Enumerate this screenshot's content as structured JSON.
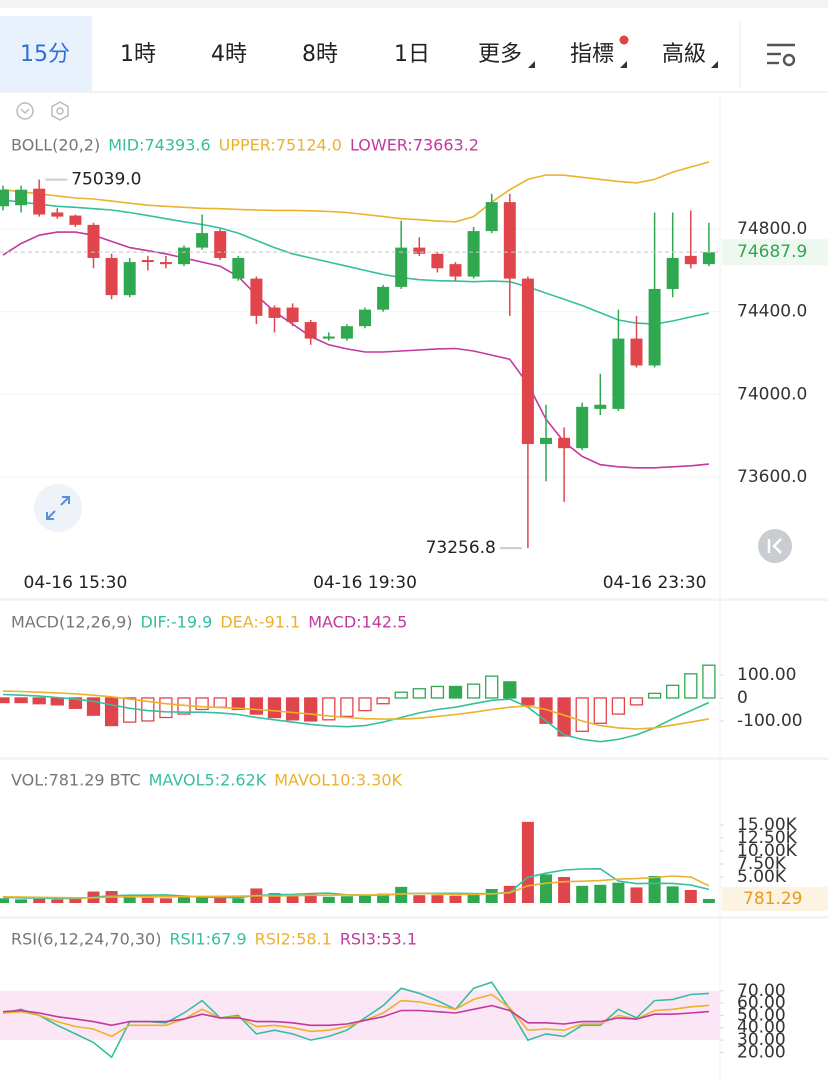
{
  "toolbar": {
    "tabs": [
      "15分",
      "1時",
      "4時",
      "8時",
      "1日",
      "更多",
      "指標",
      "高級"
    ],
    "active": 0
  },
  "chart_data": [
    {
      "type": "candlestick",
      "title": "BOLL(20,2)",
      "categories": [
        null,
        null,
        null,
        null,
        "04-16 15:30",
        null,
        null,
        null,
        null,
        null,
        null,
        null,
        null,
        null,
        null,
        null,
        null,
        null,
        null,
        null,
        "04-16 19:30",
        null,
        null,
        null,
        null,
        null,
        null,
        null,
        null,
        null,
        null,
        null,
        null,
        null,
        null,
        null,
        "04-16 23:30",
        null,
        null,
        null
      ],
      "open": [
        74910,
        74915,
        74995,
        74880,
        74865,
        74820,
        74660,
        74480,
        74650,
        74640,
        74630,
        74710,
        74790,
        74560,
        74560,
        74420,
        74420,
        74350,
        74270,
        74270,
        74330,
        74410,
        74520,
        74710,
        74680,
        74630,
        74570,
        74790,
        74930,
        74560,
        73760,
        73790,
        73740,
        73930,
        73930,
        74270,
        74140,
        74510,
        74670,
        74630
      ],
      "high": [
        75010,
        75010,
        75039,
        74900,
        74870,
        74830,
        74680,
        74660,
        74670,
        74670,
        74720,
        74870,
        74800,
        74670,
        74570,
        74430,
        74440,
        74360,
        74300,
        74340,
        74420,
        74530,
        74840,
        74760,
        74690,
        74640,
        74810,
        74970,
        74970,
        74570,
        73950,
        73840,
        73960,
        74100,
        74410,
        74380,
        74880,
        74880,
        74890,
        74830
      ],
      "low": [
        74890,
        74880,
        74860,
        74850,
        74810,
        74610,
        74460,
        74470,
        74600,
        74610,
        74620,
        74700,
        74650,
        74550,
        74340,
        74300,
        74330,
        74240,
        74260,
        74260,
        74320,
        74400,
        74510,
        74670,
        74590,
        74550,
        74560,
        74780,
        74380,
        73256.8,
        73580,
        73480,
        73730,
        73900,
        73920,
        74130,
        74130,
        74470,
        74610,
        74620
      ],
      "close": [
        74990,
        74990,
        74870,
        74860,
        74820,
        74660,
        74480,
        74640,
        74640,
        74630,
        74710,
        74780,
        74660,
        74660,
        74380,
        74370,
        74350,
        74270,
        74280,
        74330,
        74410,
        74520,
        74710,
        74680,
        74610,
        74570,
        74790,
        74930,
        74560,
        73760,
        73790,
        73740,
        73940,
        73950,
        74270,
        74140,
        74510,
        74660,
        74630,
        74687.9
      ],
      "up_color": "#2fa84f",
      "down_color": "#e0454c",
      "series": [
        {
          "name": "MID:74393.6",
          "color": "#35bfa0",
          "values": [
            74940,
            74930,
            74920,
            74910,
            74905,
            74898,
            74892,
            74880,
            74865,
            74850,
            74835,
            74822,
            74805,
            74780,
            74745,
            74710,
            74680,
            74660,
            74640,
            74620,
            74600,
            74580,
            74565,
            74555,
            74550,
            74548,
            74545,
            74548,
            74545,
            74520,
            74490,
            74460,
            74430,
            74395,
            74360,
            74345,
            74340,
            74355,
            74375,
            74393.6
          ]
        },
        {
          "name": "UPPER:75124.0",
          "color": "#ebb22c",
          "values": [
            74990,
            74980,
            74970,
            74960,
            74950,
            74945,
            74935,
            74925,
            74915,
            74910,
            74905,
            74900,
            74898,
            74895,
            74892,
            74890,
            74890,
            74888,
            74885,
            74880,
            74870,
            74860,
            74850,
            74845,
            74838,
            74835,
            74860,
            74930,
            74990,
            75040,
            75061,
            75060,
            75050,
            75040,
            75030,
            75023,
            75040,
            75075,
            75100,
            75124.0
          ]
        },
        {
          "name": "LOWER:73663.2",
          "color": "#c2399f",
          "values": [
            74674,
            74730,
            74770,
            74785,
            74785,
            74770,
            74740,
            74710,
            74695,
            74680,
            74660,
            74640,
            74620,
            74570,
            74480,
            74400,
            74340,
            74280,
            74240,
            74220,
            74205,
            74205,
            74210,
            74215,
            74220,
            74222,
            74210,
            74190,
            74170,
            74050,
            73880,
            73770,
            73700,
            73660,
            73650,
            73645,
            73645,
            73650,
            73655,
            73663.2
          ]
        }
      ],
      "ylim": [
        73175,
        75303
      ],
      "yticks": [
        {
          "value": 74800,
          "label": "74800.0"
        },
        {
          "value": 74400,
          "label": "74400.0"
        },
        {
          "value": 74000,
          "label": "74000.0"
        },
        {
          "value": 73600,
          "label": "73600.0"
        }
      ],
      "grid": true,
      "last_label": "74687.9",
      "high_label": "75039.0",
      "low_label": "73256.8"
    },
    {
      "type": "macd",
      "title": "MACD(12,26,9)",
      "series": [
        {
          "name": "DIF:-19.9",
          "color": "#35bfa0",
          "values": [
            15,
            12,
            8,
            2,
            -5,
            -15,
            -30,
            -45,
            -55,
            -60,
            -62,
            -62,
            -65,
            -72,
            -85,
            -95,
            -105,
            -115,
            -122,
            -125,
            -120,
            -105,
            -85,
            -65,
            -50,
            -40,
            -25,
            -10,
            -5,
            -40,
            -100,
            -160,
            -180,
            -190,
            -180,
            -160,
            -130,
            -90,
            -55,
            -19.9
          ]
        },
        {
          "name": "DEA:-91.1",
          "color": "#ebb22c",
          "values": [
            30,
            28,
            25,
            22,
            18,
            12,
            5,
            -5,
            -15,
            -25,
            -32,
            -38,
            -42,
            -45,
            -50,
            -56,
            -63,
            -70,
            -78,
            -85,
            -90,
            -92,
            -92,
            -88,
            -80,
            -72,
            -62,
            -50,
            -40,
            -35,
            -50,
            -75,
            -100,
            -120,
            -130,
            -135,
            -130,
            -118,
            -105,
            -91.1
          ]
        }
      ],
      "histogram": {
        "name": "MACD:142.5",
        "color": "#c2399f",
        "up_color": "#2fa84f",
        "down_color": "#e0454c",
        "values": [
          -20,
          -20,
          -25,
          -30,
          -45,
          -75,
          -120,
          -105,
          -100,
          -85,
          -70,
          -50,
          -40,
          -50,
          -70,
          -85,
          -95,
          -100,
          -95,
          -80,
          -55,
          -25,
          25,
          40,
          50,
          50,
          60,
          95,
          70,
          -30,
          -110,
          -165,
          -145,
          -110,
          -70,
          -30,
          20,
          55,
          105,
          142.5
        ],
        "hollow": [
          false,
          false,
          false,
          false,
          false,
          false,
          false,
          true,
          true,
          true,
          true,
          true,
          true,
          false,
          false,
          false,
          false,
          false,
          true,
          true,
          true,
          true,
          true,
          true,
          true,
          false,
          true,
          true,
          false,
          false,
          false,
          false,
          true,
          true,
          true,
          true,
          true,
          true,
          true,
          true
        ]
      },
      "ylim": [
        -248,
        252
      ],
      "yticks": [
        {
          "value": 100,
          "label": "100.00"
        },
        0,
        {
          "value": -100,
          "label": "-100.00"
        }
      ]
    },
    {
      "type": "volume",
      "title": "VOL:781.29 BTC",
      "values": [
        900,
        700,
        800,
        700,
        1100,
        2200,
        2300,
        1400,
        1000,
        900,
        1100,
        1300,
        1000,
        900,
        2800,
        1900,
        1700,
        1800,
        1200,
        1300,
        1500,
        1800,
        3100,
        1500,
        1500,
        1400,
        1600,
        2700,
        3300,
        15600,
        5500,
        5000,
        3300,
        3500,
        3900,
        3000,
        5200,
        3200,
        2500,
        781.29
      ],
      "last_label": "781.29",
      "series": [
        {
          "name": "MAVOL5:2.62K",
          "color": "#35bfa0",
          "values": [
            1100,
            1000,
            950,
            900,
            850,
            1100,
            1400,
            1500,
            1500,
            1560,
            1340,
            1140,
            1060,
            1040,
            1420,
            1580,
            1660,
            1820,
            1880,
            1580,
            1500,
            1500,
            1780,
            1840,
            1840,
            1860,
            1820,
            1740,
            2100,
            4940,
            5740,
            6340,
            6540,
            6580,
            4240,
            3740,
            3780,
            3760,
            3460,
            2620
          ]
        },
        {
          "name": "MAVOL10:3.30K",
          "color": "#ebb22c",
          "values": [
            1200,
            1150,
            1100,
            1050,
            1000,
            1000,
            1150,
            1200,
            1200,
            1200,
            1220,
            1270,
            1280,
            1300,
            1400,
            1350,
            1400,
            1480,
            1500,
            1560,
            1540,
            1580,
            1720,
            1860,
            1710,
            1680,
            1660,
            1760,
            1970,
            3300,
            3800,
            4100,
            4200,
            4300,
            4600,
            4700,
            4900,
            5200,
            5000,
            3300
          ]
        }
      ],
      "ylim": [
        0,
        20770
      ],
      "yticks": [
        {
          "value": 15000,
          "label": "15.00K"
        },
        {
          "value": 12500,
          "label": "12.50K"
        },
        {
          "value": 10000,
          "label": "10.00K"
        },
        {
          "value": 7500,
          "label": "7.50K"
        },
        {
          "value": 5000,
          "label": "5.00K"
        }
      ]
    },
    {
      "type": "rsi",
      "title": "RSI(6,12,24,70,30)",
      "band": [
        30,
        70
      ],
      "band_color": "#fbe6f6",
      "series": [
        {
          "name": "RSI1:67.9",
          "color": "#35bfa0",
          "values": [
            52,
            55,
            50,
            42,
            35,
            28,
            16,
            45,
            45,
            44,
            52,
            62,
            48,
            50,
            35,
            38,
            35,
            30,
            33,
            38,
            48,
            58,
            72,
            68,
            62,
            55,
            72,
            77,
            55,
            30,
            35,
            33,
            42,
            42,
            55,
            48,
            62,
            63,
            67,
            67.9
          ]
        },
        {
          "name": "RSI2:58.1",
          "color": "#ebb22c",
          "values": [
            52,
            53,
            50,
            45,
            41,
            39,
            33,
            42,
            42,
            42,
            47,
            55,
            48,
            49,
            41,
            42,
            40,
            37,
            38,
            41,
            46,
            52,
            62,
            61,
            58,
            55,
            63,
            67,
            56,
            38,
            39,
            38,
            43,
            43,
            50,
            47,
            54,
            55,
            57,
            58.1
          ]
        },
        {
          "name": "RSI3:53.1",
          "color": "#c2399f",
          "values": [
            53,
            54,
            52,
            49,
            47,
            45,
            42,
            45,
            45,
            45,
            47,
            51,
            48,
            48,
            45,
            45,
            44,
            42,
            42,
            43,
            46,
            49,
            54,
            54,
            53,
            52,
            55,
            58,
            54,
            44,
            44,
            43,
            45,
            45,
            48,
            47,
            51,
            51,
            52,
            53.1
          ]
        }
      ],
      "ylim": [
        0,
        95
      ],
      "yticks": [
        {
          "value": 70,
          "label": "70.00"
        },
        {
          "value": 60,
          "label": "60.00"
        },
        {
          "value": 50,
          "label": "50.00"
        },
        {
          "value": 40,
          "label": "40.00"
        },
        {
          "value": 30,
          "label": "30.00"
        },
        {
          "value": 20,
          "label": "20.00"
        }
      ]
    }
  ]
}
